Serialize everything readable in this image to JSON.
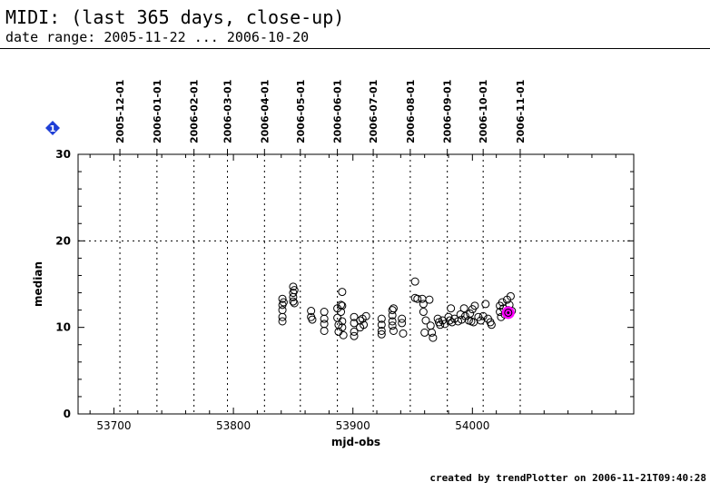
{
  "header": {
    "title": "MIDI: (last 365 days, close-up)",
    "subtitle": "date range: 2005-11-22 ... 2006-10-20"
  },
  "marker_badge": {
    "label": "1",
    "color": "#1f3fd6"
  },
  "footer": {
    "text": "created by trendPlotter on 2006-11-21T09:40:28"
  },
  "chart_data": {
    "type": "scatter",
    "xlabel": "mjd-obs",
    "ylabel": "median",
    "xlim": [
      53670,
      54135
    ],
    "ylim": [
      0,
      30
    ],
    "x_ticks": [
      53700,
      53800,
      53900,
      54000
    ],
    "y_ticks": [
      0,
      10,
      20,
      30
    ],
    "hgrid": [
      20
    ],
    "top_date_ticks": [
      {
        "label": "2005-12-01",
        "mjd": 53705
      },
      {
        "label": "2006-01-01",
        "mjd": 53736
      },
      {
        "label": "2006-02-01",
        "mjd": 53767
      },
      {
        "label": "2006-03-01",
        "mjd": 53795
      },
      {
        "label": "2006-04-01",
        "mjd": 53826
      },
      {
        "label": "2006-05-01",
        "mjd": 53856
      },
      {
        "label": "2006-06-01",
        "mjd": 53887
      },
      {
        "label": "2006-07-01",
        "mjd": 53917
      },
      {
        "label": "2006-08-01",
        "mjd": 53948
      },
      {
        "label": "2006-09-01",
        "mjd": 53979
      },
      {
        "label": "2006-10-01",
        "mjd": 54009
      },
      {
        "label": "2006-11-01",
        "mjd": 54040
      }
    ],
    "highlight_point": {
      "x": 54030,
      "y": 11.7,
      "color": "#ff00ff"
    },
    "points": [
      [
        53841,
        13.3
      ],
      [
        53841,
        12.6
      ],
      [
        53841,
        12.0
      ],
      [
        53841,
        11.2
      ],
      [
        53841,
        10.7
      ],
      [
        53842,
        12.9
      ],
      [
        53850,
        14.7
      ],
      [
        53850,
        14.0
      ],
      [
        53850,
        13.5
      ],
      [
        53850,
        13.0
      ],
      [
        53851,
        14.3
      ],
      [
        53851,
        12.8
      ],
      [
        53865,
        11.9
      ],
      [
        53865,
        11.2
      ],
      [
        53866,
        10.9
      ],
      [
        53876,
        11.8
      ],
      [
        53876,
        11.0
      ],
      [
        53876,
        10.4
      ],
      [
        53876,
        9.6
      ],
      [
        53887,
        12.2
      ],
      [
        53887,
        11.1
      ],
      [
        53888,
        10.3
      ],
      [
        53888,
        9.5
      ],
      [
        53890,
        12.6
      ],
      [
        53890,
        11.8
      ],
      [
        53891,
        14.1
      ],
      [
        53891,
        12.5
      ],
      [
        53891,
        10.7
      ],
      [
        53891,
        10.0
      ],
      [
        53892,
        9.1
      ],
      [
        53901,
        11.2
      ],
      [
        53901,
        10.5
      ],
      [
        53901,
        9.5
      ],
      [
        53901,
        9.0
      ],
      [
        53906,
        10.8
      ],
      [
        53906,
        10.0
      ],
      [
        53908,
        11.0
      ],
      [
        53909,
        10.3
      ],
      [
        53911,
        11.3
      ],
      [
        53924,
        11.0
      ],
      [
        53924,
        10.3
      ],
      [
        53924,
        9.6
      ],
      [
        53924,
        9.2
      ],
      [
        53933,
        12.0
      ],
      [
        53933,
        11.4
      ],
      [
        53933,
        10.7
      ],
      [
        53933,
        10.2
      ],
      [
        53934,
        9.6
      ],
      [
        53934,
        12.2
      ],
      [
        53941,
        11.0
      ],
      [
        53941,
        10.5
      ],
      [
        53942,
        9.3
      ],
      [
        53952,
        15.3
      ],
      [
        53952,
        13.4
      ],
      [
        53954,
        13.3
      ],
      [
        53958,
        13.3
      ],
      [
        53959,
        12.7
      ],
      [
        53959,
        11.8
      ],
      [
        53960,
        9.4
      ],
      [
        53961,
        10.8
      ],
      [
        53964,
        13.2
      ],
      [
        53965,
        10.2
      ],
      [
        53966,
        9.4
      ],
      [
        53967,
        8.8
      ],
      [
        53971,
        11.0
      ],
      [
        53972,
        10.6
      ],
      [
        53973,
        10.3
      ],
      [
        53975,
        10.8
      ],
      [
        53977,
        10.4
      ],
      [
        53980,
        11.2
      ],
      [
        53981,
        10.8
      ],
      [
        53982,
        12.2
      ],
      [
        53983,
        10.6
      ],
      [
        53985,
        11.0
      ],
      [
        53988,
        10.7
      ],
      [
        53990,
        11.5
      ],
      [
        53991,
        10.9
      ],
      [
        53993,
        12.2
      ],
      [
        53994,
        11.3
      ],
      [
        53997,
        10.8
      ],
      [
        53998,
        11.6
      ],
      [
        53999,
        10.7
      ],
      [
        54000,
        12.1
      ],
      [
        54001,
        10.6
      ],
      [
        54002,
        12.5
      ],
      [
        54005,
        11.2
      ],
      [
        54007,
        10.8
      ],
      [
        54009,
        11.3
      ],
      [
        54011,
        12.7
      ],
      [
        54013,
        11.0
      ],
      [
        54015,
        10.6
      ],
      [
        54016,
        10.3
      ],
      [
        54023,
        12.5
      ],
      [
        54023,
        11.8
      ],
      [
        54024,
        11.2
      ],
      [
        54025,
        12.9
      ],
      [
        54026,
        12.2
      ],
      [
        54027,
        11.5
      ],
      [
        54029,
        13.2
      ],
      [
        54030,
        12.0
      ],
      [
        54031,
        12.6
      ],
      [
        54032,
        13.6
      ],
      [
        54033,
        11.9
      ]
    ]
  }
}
